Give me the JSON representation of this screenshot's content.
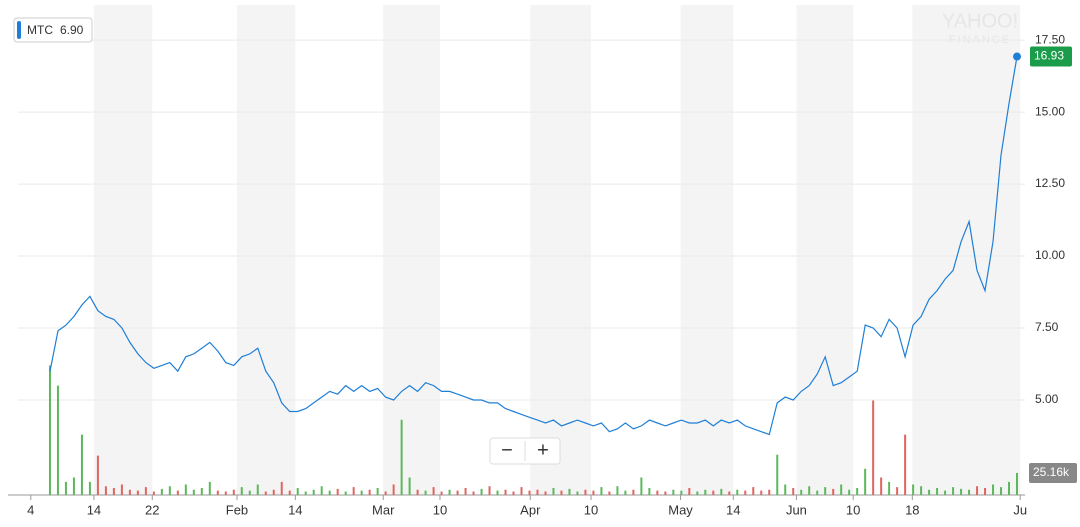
{
  "chart_data": {
    "type": "stock",
    "x": [
      4,
      5,
      6,
      7,
      8,
      9,
      10,
      11,
      12,
      13,
      14,
      15,
      16,
      17,
      18,
      19,
      20,
      21,
      22,
      23,
      24,
      25,
      26,
      27,
      28,
      29,
      30,
      31,
      32,
      33,
      34,
      35,
      36,
      37,
      38,
      39,
      40,
      41,
      42,
      43,
      44,
      45,
      46,
      47,
      48,
      49,
      50,
      51,
      52,
      53,
      54,
      55,
      56,
      57,
      58,
      59,
      60,
      61,
      62,
      63,
      64,
      65,
      66,
      67,
      68,
      69,
      70,
      71,
      72,
      73,
      74,
      75,
      76,
      77,
      78,
      79,
      80,
      81,
      82,
      83,
      84,
      85,
      86,
      87,
      88,
      89,
      90,
      91,
      92,
      93,
      94,
      95,
      96,
      97,
      98,
      99,
      100,
      101,
      102,
      103,
      104,
      105,
      106,
      107,
      108,
      109,
      110,
      111,
      112,
      113,
      114,
      115,
      116,
      117,
      118,
      119,
      120,
      121,
      122,
      123,
      124,
      125
    ],
    "series": [
      {
        "name": "MTC",
        "legend_value": "6.90",
        "color": "#1f7fd6",
        "values": [
          6.0,
          7.4,
          7.6,
          7.9,
          8.3,
          8.6,
          8.1,
          7.9,
          7.8,
          7.5,
          7.0,
          6.6,
          6.3,
          6.1,
          6.2,
          6.3,
          6.0,
          6.5,
          6.6,
          6.8,
          7.0,
          6.7,
          6.3,
          6.2,
          6.5,
          6.6,
          6.8,
          6.0,
          5.6,
          4.9,
          4.6,
          4.6,
          4.7,
          4.9,
          5.1,
          5.3,
          5.2,
          5.5,
          5.3,
          5.5,
          5.3,
          5.4,
          5.1,
          5.0,
          5.3,
          5.5,
          5.3,
          5.6,
          5.5,
          5.3,
          5.3,
          5.2,
          5.1,
          5.0,
          5.0,
          4.9,
          4.9,
          4.7,
          4.6,
          4.5,
          4.4,
          4.3,
          4.2,
          4.3,
          4.1,
          4.2,
          4.3,
          4.2,
          4.1,
          4.2,
          3.9,
          4.0,
          4.2,
          4.0,
          4.1,
          4.3,
          4.2,
          4.1,
          4.2,
          4.3,
          4.2,
          4.2,
          4.3,
          4.1,
          4.3,
          4.2,
          4.3,
          4.1,
          4.0,
          3.9,
          3.8,
          4.9,
          5.1,
          5.0,
          5.3,
          5.5,
          5.9,
          6.5,
          5.5,
          5.6,
          5.8,
          6.0,
          7.6,
          7.5,
          7.2,
          7.8,
          7.5,
          6.5,
          7.6,
          7.9,
          8.5,
          8.8,
          9.2,
          9.5,
          10.5,
          11.2,
          9.5,
          8.8,
          10.5,
          13.5,
          15.3,
          16.93
        ]
      },
      {
        "name": "Volume",
        "axis": "y2",
        "up_color": "#5cb85c",
        "down_color": "#e0645f",
        "values": [
          148,
          125,
          15,
          20,
          69,
          15,
          45,
          10,
          8,
          12,
          6,
          5,
          9,
          4,
          7,
          10,
          5,
          12,
          6,
          8,
          15,
          5,
          4,
          6,
          9,
          5,
          12,
          4,
          6,
          15,
          5,
          8,
          4,
          6,
          10,
          5,
          7,
          4,
          9,
          5,
          6,
          8,
          4,
          12,
          86,
          20,
          6,
          5,
          9,
          4,
          6,
          5,
          8,
          4,
          7,
          10,
          5,
          6,
          4,
          9,
          5,
          6,
          4,
          8,
          5,
          7,
          4,
          6,
          5,
          9,
          4,
          10,
          5,
          6,
          20,
          8,
          5,
          4,
          6,
          5,
          8,
          4,
          6,
          5,
          7,
          4,
          6,
          5,
          9,
          5,
          6,
          46,
          12,
          8,
          6,
          10,
          5,
          9,
          7,
          12,
          6,
          8,
          30,
          108,
          20,
          15,
          9,
          69,
          12,
          10,
          6,
          8,
          5,
          9,
          7,
          6,
          10,
          8,
          12,
          9,
          15,
          25.16
        ]
      }
    ],
    "xlim": [
      0,
      126
    ],
    "xticks": [
      {
        "value": 1.6,
        "label": "4"
      },
      {
        "value": 9.5,
        "label": "14"
      },
      {
        "value": 16.8,
        "label": "22"
      },
      {
        "value": 27.4,
        "label": "Feb"
      },
      {
        "value": 34.7,
        "label": "14"
      },
      {
        "value": 45.7,
        "label": "Mar"
      },
      {
        "value": 52.8,
        "label": "10"
      },
      {
        "value": 64.1,
        "label": "Apr"
      },
      {
        "value": 71.7,
        "label": "10"
      },
      {
        "value": 82.9,
        "label": "May"
      },
      {
        "value": 89.5,
        "label": "14"
      },
      {
        "value": 97.4,
        "label": "Jun"
      },
      {
        "value": 104.5,
        "label": "10"
      },
      {
        "value": 111.9,
        "label": "18"
      },
      {
        "value": 125.4,
        "label": "Ju"
      }
    ],
    "ylim": [
      1.7,
      18.72
    ],
    "yticks": [
      {
        "value": 5,
        "label": "5.00"
      },
      {
        "value": 7.5,
        "label": "7.50"
      },
      {
        "value": 10,
        "label": "10.00"
      },
      {
        "value": 12.5,
        "label": "12.50"
      },
      {
        "value": 15,
        "label": "15.00"
      },
      {
        "value": 17.5,
        "label": "17.50"
      }
    ],
    "y2lim": [
      0,
      560
    ],
    "y2ticks": [
      {
        "value": 25.16,
        "label": "25.16k"
      }
    ],
    "grid": true,
    "watermark": [
      "YAHOO!",
      "FINANCE"
    ],
    "controls": {
      "zoom_out": "−",
      "zoom_in": "+"
    }
  }
}
